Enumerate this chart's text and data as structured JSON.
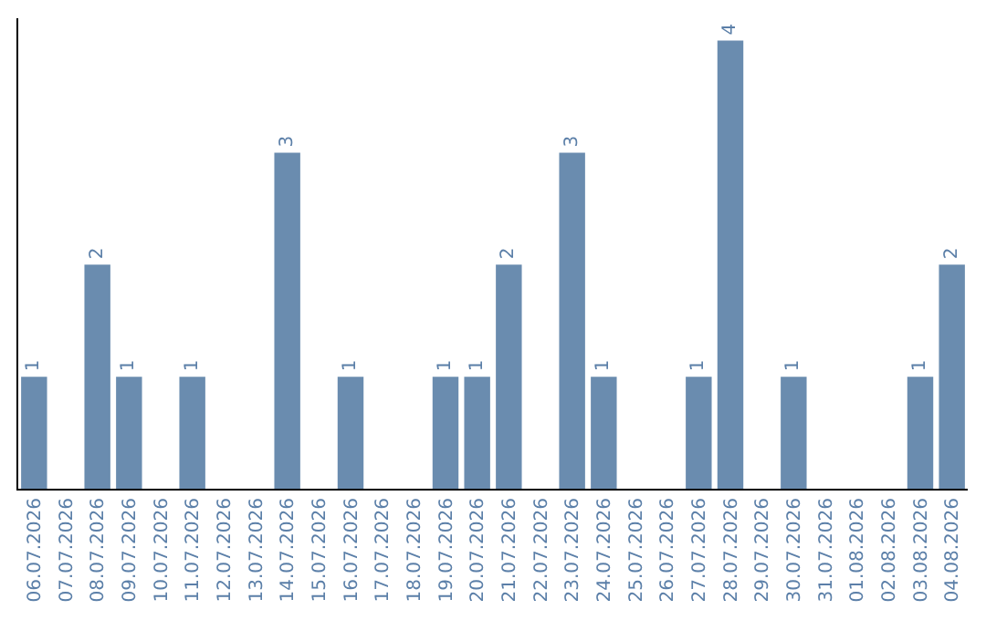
{
  "chart_data": {
    "type": "bar",
    "categories": [
      "06.07.2026",
      "07.07.2026",
      "08.07.2026",
      "09.07.2026",
      "10.07.2026",
      "11.07.2026",
      "12.07.2026",
      "13.07.2026",
      "14.07.2026",
      "15.07.2026",
      "16.07.2026",
      "17.07.2026",
      "18.07.2026",
      "19.07.2026",
      "20.07.2026",
      "21.07.2026",
      "22.07.2026",
      "23.07.2026",
      "24.07.2026",
      "25.07.2026",
      "26.07.2026",
      "27.07.2026",
      "28.07.2026",
      "29.07.2026",
      "30.07.2026",
      "31.07.2026",
      "01.08.2026",
      "02.08.2026",
      "03.08.2026",
      "04.08.2026"
    ],
    "values": [
      1,
      null,
      2,
      1,
      null,
      1,
      null,
      null,
      3,
      null,
      1,
      null,
      null,
      1,
      1,
      2,
      null,
      3,
      1,
      null,
      null,
      1,
      4,
      null,
      1,
      null,
      null,
      null,
      1,
      2
    ],
    "color": "#6a8caf",
    "ylim": [
      0,
      4.2
    ],
    "data_labels": true,
    "tick_labels": "x"
  }
}
